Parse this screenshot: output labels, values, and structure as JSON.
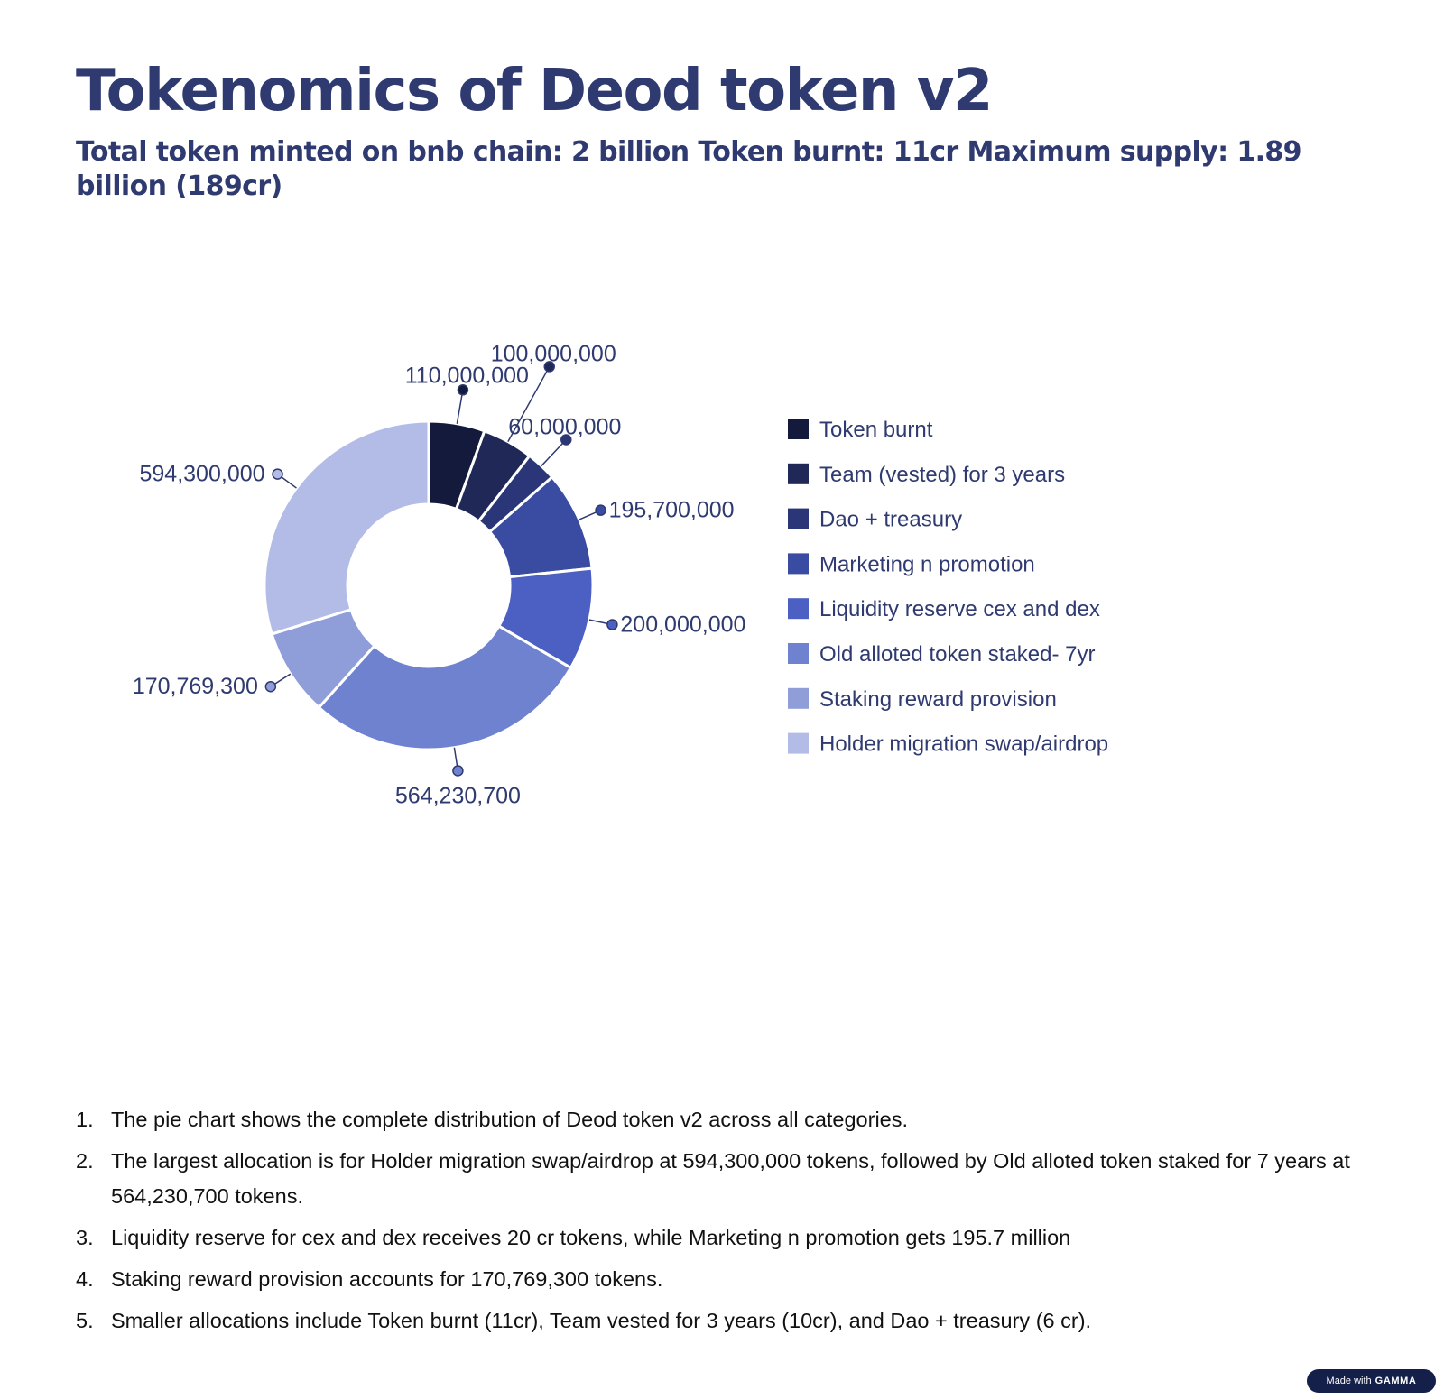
{
  "title": "Tokenomics of Deod token v2",
  "subtitle": "Total token minted on bnb chain: 2 billion Token burnt: 11cr Maximum supply: 1.89 billion (189cr)",
  "chart_data": {
    "type": "pie",
    "variant": "donut",
    "legend_position": "right",
    "categories": [
      "Token burnt",
      "Team (vested) for 3 years",
      "Dao + treasury",
      "Marketing n promotion",
      "Liquidity reserve cex and dex",
      "Old alloted token staked- 7yr",
      "Staking reward provision",
      "Holder migration swap/airdrop"
    ],
    "values": [
      110000000,
      100000000,
      60000000,
      195700000,
      200000000,
      564230700,
      170769300,
      594300000
    ],
    "data_labels": [
      "110,000,000",
      "100,000,000",
      "60,000,000",
      "195,700,000",
      "200,000,000",
      "564,230,700",
      "170,769,300",
      "594,300,000"
    ],
    "colors": [
      "#131a3b",
      "#1f2857",
      "#2a3677",
      "#3a4ba2",
      "#4c5fc2",
      "#6f82cf",
      "#8f9ed8",
      "#b2bce6"
    ]
  },
  "notes": [
    {
      "num": "1.",
      "text": "The pie chart shows the complete distribution of Deod token v2 across all categories."
    },
    {
      "num": "2.",
      "text": "The largest allocation is for Holder migration swap/airdrop at 594,300,000 tokens, followed by Old alloted token staked for 7 years at 564,230,700 tokens."
    },
    {
      "num": "3.",
      "text": "Liquidity reserve for cex and dex receives 20 cr tokens, while Marketing n promotion gets 195.7 million"
    },
    {
      "num": "4.",
      "text": "Staking reward provision accounts for 170,769,300 tokens."
    },
    {
      "num": "5.",
      "text": "Smaller allocations include Token burnt (11cr), Team vested for 3 years (10cr), and Dao + treasury (6 cr)."
    }
  ],
  "badge": {
    "prefix": "Made with",
    "brand": "GAMMA"
  }
}
